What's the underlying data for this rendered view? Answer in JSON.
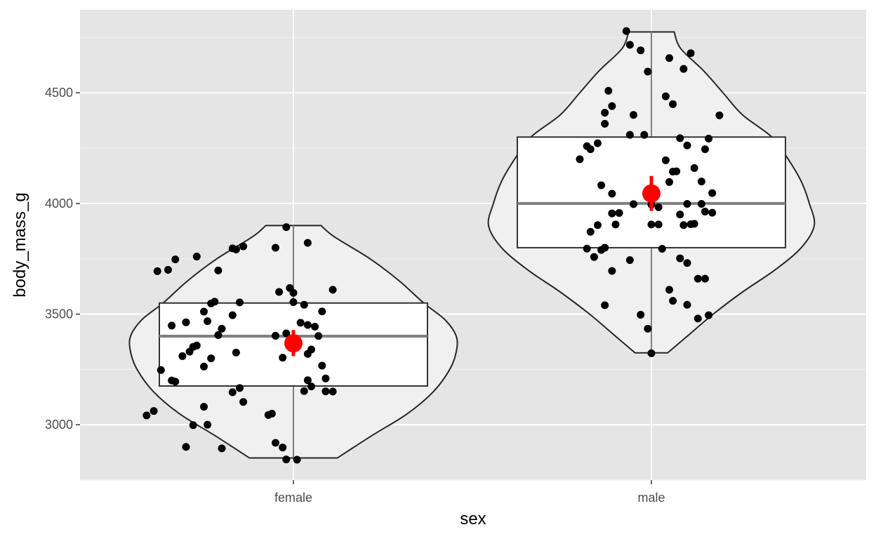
{
  "chart_data": {
    "type": "violin",
    "title": "",
    "xlabel": "sex",
    "ylabel": "body_mass_g",
    "categories": [
      "female",
      "male"
    ],
    "y_ticks": [
      3000,
      3500,
      4000,
      4500
    ],
    "y_tick_labels": [
      "3000",
      "3500",
      "4000",
      "4500"
    ],
    "ylim": [
      2750,
      4875
    ],
    "grid": true,
    "legend": "none",
    "colors": {
      "panel": "#e5e5e5",
      "violin_fill": "#f0f0f0",
      "points": "#000000",
      "mean": "#ff0000"
    },
    "groups": [
      {
        "name": "female",
        "box": {
          "q1": 3175,
          "median": 3400,
          "q3": 3550,
          "whisker_low": 2850,
          "whisker_high": 3900
        },
        "mean": 3368,
        "mean_ci": [
          3310,
          3428
        ],
        "violin_width_profile": [
          [
            2850,
            0.27
          ],
          [
            2950,
            0.48
          ],
          [
            3050,
            0.7
          ],
          [
            3150,
            0.86
          ],
          [
            3250,
            0.96
          ],
          [
            3330,
            1.0
          ],
          [
            3400,
            1.0
          ],
          [
            3475,
            0.93
          ],
          [
            3550,
            0.8
          ],
          [
            3650,
            0.65
          ],
          [
            3750,
            0.47
          ],
          [
            3850,
            0.25
          ],
          [
            3900,
            0.17
          ]
        ],
        "points": [
          [
            0.98,
            3893
          ],
          [
            0.95,
            3800
          ],
          [
            0.83,
            3797
          ],
          [
            0.84,
            3792
          ],
          [
            0.73,
            3760
          ],
          [
            0.67,
            3747
          ],
          [
            0.65,
            3700
          ],
          [
            0.62,
            3694
          ],
          [
            0.79,
            3697
          ],
          [
            0.86,
            3806
          ],
          [
            1.04,
            3822
          ],
          [
            0.78,
            3556
          ],
          [
            0.75,
            3511
          ],
          [
            0.66,
            3448
          ],
          [
            0.77,
            3548
          ],
          [
            0.85,
            3553
          ],
          [
            0.96,
            3600
          ],
          [
            0.99,
            3618
          ],
          [
            1.0,
            3596
          ],
          [
            1.11,
            3610
          ],
          [
            1.0,
            3554
          ],
          [
            1.03,
            3542
          ],
          [
            1.08,
            3512
          ],
          [
            0.7,
            3463
          ],
          [
            0.73,
            3358
          ],
          [
            0.72,
            3352
          ],
          [
            0.79,
            3405
          ],
          [
            0.76,
            3468
          ],
          [
            0.8,
            3434
          ],
          [
            0.83,
            3495
          ],
          [
            0.95,
            3402
          ],
          [
            0.98,
            3413
          ],
          [
            1.02,
            3461
          ],
          [
            1.04,
            3451
          ],
          [
            1.06,
            3443
          ],
          [
            1.07,
            3401
          ],
          [
            0.69,
            3310
          ],
          [
            0.71,
            3330
          ],
          [
            0.77,
            3300
          ],
          [
            0.75,
            3263
          ],
          [
            0.63,
            3247
          ],
          [
            0.66,
            3200
          ],
          [
            0.67,
            3195
          ],
          [
            0.84,
            3326
          ],
          [
            0.97,
            3303
          ],
          [
            1.04,
            3320
          ],
          [
            1.05,
            3340
          ],
          [
            1.08,
            3267
          ],
          [
            1.09,
            3209
          ],
          [
            0.85,
            3166
          ],
          [
            0.86,
            3103
          ],
          [
            0.83,
            3147
          ],
          [
            0.75,
            3081
          ],
          [
            0.76,
            3000
          ],
          [
            0.72,
            2998
          ],
          [
            0.61,
            3062
          ],
          [
            0.59,
            3042
          ],
          [
            0.7,
            2900
          ],
          [
            0.8,
            2893
          ],
          [
            0.95,
            2918
          ],
          [
            0.97,
            2897
          ],
          [
            0.98,
            2843
          ],
          [
            1.01,
            2842
          ],
          [
            1.04,
            3201
          ],
          [
            1.05,
            3173
          ],
          [
            1.03,
            3152
          ],
          [
            1.09,
            3151
          ],
          [
            1.11,
            3150
          ],
          [
            0.94,
            3050
          ],
          [
            0.93,
            3044
          ]
        ]
      },
      {
        "name": "male",
        "box": {
          "q1": 3800,
          "median": 4000,
          "q3": 4300,
          "whisker_low": 3325,
          "whisker_high": 4775
        },
        "mean": 4045,
        "mean_ci": [
          3966,
          4124
        ],
        "violin_width_profile": [
          [
            3325,
            0.1
          ],
          [
            3400,
            0.22
          ],
          [
            3500,
            0.38
          ],
          [
            3600,
            0.56
          ],
          [
            3700,
            0.76
          ],
          [
            3800,
            0.92
          ],
          [
            3900,
            1.0
          ],
          [
            4000,
            0.97
          ],
          [
            4100,
            0.92
          ],
          [
            4200,
            0.84
          ],
          [
            4300,
            0.74
          ],
          [
            4400,
            0.56
          ],
          [
            4500,
            0.44
          ],
          [
            4600,
            0.32
          ],
          [
            4700,
            0.18
          ],
          [
            4775,
            0.14
          ]
        ],
        "points": [
          [
            1.93,
            4779
          ],
          [
            1.94,
            4717
          ],
          [
            1.97,
            4692
          ],
          [
            2.05,
            4657
          ],
          [
            2.11,
            4679
          ],
          [
            1.99,
            4596
          ],
          [
            2.09,
            4608
          ],
          [
            1.88,
            4509
          ],
          [
            2.04,
            4484
          ],
          [
            2.06,
            4449
          ],
          [
            1.87,
            4410
          ],
          [
            1.89,
            4440
          ],
          [
            1.95,
            4400
          ],
          [
            2.19,
            4398
          ],
          [
            1.87,
            4360
          ],
          [
            1.94,
            4310
          ],
          [
            1.98,
            4310
          ],
          [
            1.85,
            4272
          ],
          [
            1.82,
            4259
          ],
          [
            1.83,
            4245
          ],
          [
            2.08,
            4295
          ],
          [
            2.1,
            4262
          ],
          [
            2.15,
            4245
          ],
          [
            2.16,
            4293
          ],
          [
            1.8,
            4200
          ],
          [
            2.04,
            4195
          ],
          [
            2.06,
            4144
          ],
          [
            2.07,
            4145
          ],
          [
            2.12,
            4160
          ],
          [
            2.14,
            4099
          ],
          [
            1.86,
            4082
          ],
          [
            1.89,
            4044
          ],
          [
            2.05,
            4097
          ],
          [
            2.17,
            4047
          ],
          [
            1.95,
            3997
          ],
          [
            2.0,
            3995
          ],
          [
            2.1,
            3998
          ],
          [
            2.14,
            3998
          ],
          [
            1.89,
            3955
          ],
          [
            1.91,
            3957
          ],
          [
            2.02,
            3983
          ],
          [
            2.08,
            3950
          ],
          [
            2.15,
            3963
          ],
          [
            2.17,
            3958
          ],
          [
            1.85,
            3902
          ],
          [
            1.9,
            3905
          ],
          [
            2.0,
            3905
          ],
          [
            2.02,
            3905
          ],
          [
            2.09,
            3902
          ],
          [
            2.11,
            3906
          ],
          [
            2.12,
            3908
          ],
          [
            1.83,
            3872
          ],
          [
            1.82,
            3796
          ],
          [
            1.86,
            3790
          ],
          [
            1.87,
            3800
          ],
          [
            1.84,
            3758
          ],
          [
            1.94,
            3744
          ],
          [
            1.89,
            3695
          ],
          [
            2.03,
            3795
          ],
          [
            2.08,
            3752
          ],
          [
            2.1,
            3731
          ],
          [
            2.05,
            3610
          ],
          [
            2.06,
            3560
          ],
          [
            2.13,
            3660
          ],
          [
            2.15,
            3660
          ],
          [
            1.87,
            3540
          ],
          [
            2.1,
            3542
          ],
          [
            1.97,
            3497
          ],
          [
            2.13,
            3480
          ],
          [
            2.16,
            3495
          ],
          [
            1.99,
            3434
          ],
          [
            2.0,
            3323
          ]
        ]
      }
    ]
  }
}
